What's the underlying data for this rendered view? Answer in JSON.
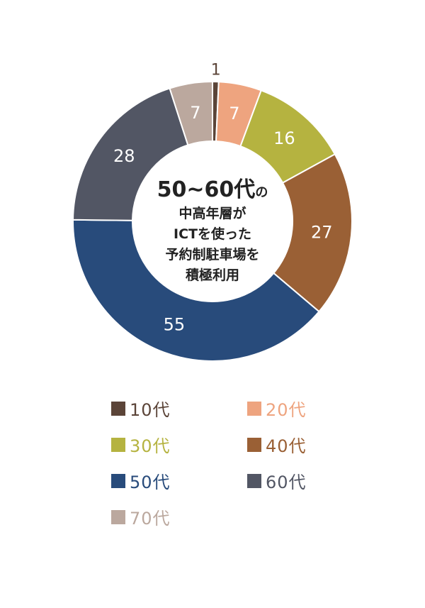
{
  "chart_data": {
    "type": "pie",
    "center_text": {
      "line1": "50~60代",
      "line1_suffix": "の",
      "lines": [
        "中高年層が",
        "ICTを使った",
        "予約制駐車場を",
        "積極利用"
      ]
    },
    "slices": [
      {
        "label": "10代",
        "value": 1,
        "color": "#5b4438"
      },
      {
        "label": "20代",
        "value": 7,
        "color": "#eea47f"
      },
      {
        "label": "30代",
        "value": 16,
        "color": "#b5b340"
      },
      {
        "label": "40代",
        "value": 27,
        "color": "#9a6035"
      },
      {
        "label": "50代",
        "value": 55,
        "color": "#284b7b"
      },
      {
        "label": "60代",
        "value": 28,
        "color": "#525664"
      },
      {
        "label": "70代",
        "value": 7,
        "color": "#bba89e"
      }
    ],
    "legend": [
      {
        "text": "10代",
        "color": "#5b4438"
      },
      {
        "text": "20代",
        "color": "#eea47f"
      },
      {
        "text": "30代",
        "color": "#b5b340"
      },
      {
        "text": "40代",
        "color": "#9a6035"
      },
      {
        "text": "50代",
        "color": "#284b7b"
      },
      {
        "text": "60代",
        "color": "#525664"
      },
      {
        "text": "70代",
        "color": "#bba89e"
      }
    ]
  }
}
